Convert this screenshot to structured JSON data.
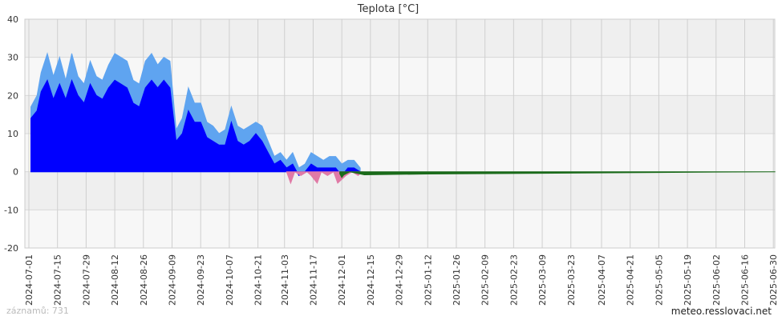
{
  "chart_data": {
    "type": "area",
    "title": "Teplota [°C]",
    "ylim": [
      -20,
      40
    ],
    "y_ticks": [
      "40",
      "30",
      "20",
      "10",
      "0",
      "-10",
      "-20"
    ],
    "x_range": [
      "2024-07-01",
      "2025-07-07"
    ],
    "x_ticks": [
      "2024-07-01",
      "2024-07-15",
      "2024-07-29",
      "2024-08-12",
      "2024-08-26",
      "2024-09-09",
      "2024-09-23",
      "2024-10-07",
      "2024-10-21",
      "2024-11-03",
      "2024-11-17",
      "2024-12-01",
      "2024-12-15",
      "2024-12-29",
      "2025-01-12",
      "2025-01-26",
      "2025-02-09",
      "2025-02-23",
      "2025-03-09",
      "2025-03-23",
      "2025-04-07",
      "2025-04-21",
      "2025-05-05",
      "2025-05-19",
      "2025-06-02",
      "2025-06-16",
      "2025-06-30"
    ],
    "grid": true,
    "legend": "none",
    "series": [
      {
        "role": "max",
        "color": "#5fa4f0",
        "x": [
          "2024-07-02",
          "2024-07-05",
          "2024-07-07",
          "2024-07-10",
          "2024-07-13",
          "2024-07-16",
          "2024-07-19",
          "2024-07-22",
          "2024-07-25",
          "2024-07-28",
          "2024-07-31",
          "2024-08-03",
          "2024-08-06",
          "2024-08-09",
          "2024-08-12",
          "2024-08-15",
          "2024-08-18",
          "2024-08-21",
          "2024-08-24",
          "2024-08-27",
          "2024-08-30",
          "2024-09-02",
          "2024-09-05",
          "2024-09-08",
          "2024-09-11",
          "2024-09-14",
          "2024-09-17",
          "2024-09-20",
          "2024-09-23",
          "2024-09-26",
          "2024-09-29",
          "2024-10-02",
          "2024-10-05",
          "2024-10-08",
          "2024-10-11",
          "2024-10-14",
          "2024-10-17",
          "2024-10-20",
          "2024-10-23",
          "2024-10-26",
          "2024-10-29",
          "2024-11-01",
          "2024-11-04",
          "2024-11-07",
          "2024-11-10",
          "2024-11-13",
          "2024-11-16",
          "2024-11-19",
          "2024-11-22",
          "2024-11-25",
          "2024-11-28",
          "2024-12-01",
          "2024-12-04",
          "2024-12-07",
          "2024-12-10"
        ],
        "values": [
          17,
          20,
          26,
          31,
          25,
          30,
          24,
          31,
          25,
          23,
          29,
          25,
          24,
          28,
          31,
          30,
          29,
          24,
          23,
          29,
          31,
          28,
          30,
          29,
          11,
          14,
          22,
          18,
          18,
          13,
          12,
          10,
          11,
          17,
          12,
          11,
          12,
          13,
          12,
          8,
          4,
          5,
          3,
          5,
          1,
          2,
          5,
          4,
          3,
          4,
          4,
          2,
          3,
          3,
          1
        ]
      },
      {
        "role": "mean",
        "color": "#0000ff",
        "x": [
          "2024-07-02",
          "2024-07-05",
          "2024-07-07",
          "2024-07-10",
          "2024-07-13",
          "2024-07-16",
          "2024-07-19",
          "2024-07-22",
          "2024-07-25",
          "2024-07-28",
          "2024-07-31",
          "2024-08-03",
          "2024-08-06",
          "2024-08-09",
          "2024-08-12",
          "2024-08-15",
          "2024-08-18",
          "2024-08-21",
          "2024-08-24",
          "2024-08-27",
          "2024-08-30",
          "2024-09-02",
          "2024-09-05",
          "2024-09-08",
          "2024-09-11",
          "2024-09-14",
          "2024-09-17",
          "2024-09-20",
          "2024-09-23",
          "2024-09-26",
          "2024-09-29",
          "2024-10-02",
          "2024-10-05",
          "2024-10-08",
          "2024-10-11",
          "2024-10-14",
          "2024-10-17",
          "2024-10-20",
          "2024-10-23",
          "2024-10-26",
          "2024-10-29",
          "2024-11-01",
          "2024-11-04",
          "2024-11-07",
          "2024-11-10",
          "2024-11-13",
          "2024-11-16",
          "2024-11-19",
          "2024-11-22",
          "2024-11-25",
          "2024-11-28",
          "2024-12-01",
          "2024-12-04",
          "2024-12-07",
          "2024-12-10"
        ],
        "values": [
          14,
          16,
          21,
          24,
          19,
          23,
          19,
          24,
          20,
          18,
          23,
          20,
          19,
          22,
          24,
          23,
          22,
          18,
          17,
          22,
          24,
          22,
          24,
          22,
          8,
          10,
          16,
          13,
          13,
          9,
          8,
          7,
          7,
          13,
          8,
          7,
          8,
          10,
          8,
          5,
          2,
          3,
          1,
          2,
          -1,
          0,
          2,
          1,
          1,
          1,
          1,
          -1,
          1,
          1,
          0
        ]
      },
      {
        "role": "min",
        "color": "#e07aa6",
        "x": [
          "2024-11-04",
          "2024-11-06",
          "2024-11-08",
          "2024-11-11",
          "2024-11-14",
          "2024-11-16",
          "2024-11-19",
          "2024-11-21",
          "2024-11-24",
          "2024-11-27",
          "2024-11-29",
          "2024-12-01",
          "2024-12-03",
          "2024-12-06",
          "2024-12-09",
          "2024-12-11"
        ],
        "values": [
          0,
          -3,
          0,
          -1,
          0,
          -1,
          -3,
          0,
          -1,
          0,
          -3,
          -2,
          -1,
          0,
          -1,
          0
        ]
      },
      {
        "role": "below-zero",
        "color": "#1a6b1a",
        "x": [
          "2024-11-30",
          "2024-12-01",
          "2024-12-02",
          "2024-12-05",
          "2024-12-12",
          "2025-01-12",
          "2025-03-09",
          "2025-05-05",
          "2025-07-01"
        ],
        "values": [
          -0.5,
          -1.5,
          -0.8,
          0,
          -0.8,
          -0.6,
          -0.4,
          -0.2,
          0
        ]
      }
    ]
  },
  "footer": {
    "records": "záznamů: 731",
    "site": "meteo.resslovaci.net"
  }
}
